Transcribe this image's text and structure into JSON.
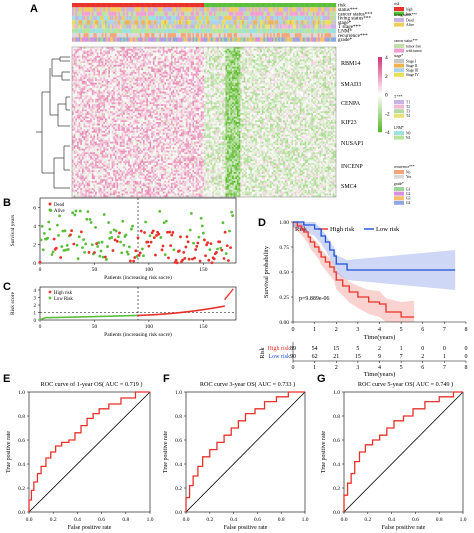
{
  "panels": {
    "A": "A",
    "B": "B",
    "C": "C",
    "D": "D",
    "E": "E",
    "F": "F",
    "G": "G"
  },
  "chart_data": [
    {
      "panel": "A",
      "type": "heatmap",
      "annotation_rows": [
        "risk",
        "status***",
        "cancer status***",
        "living status***",
        "stage*",
        "T stage***",
        "LNM*",
        "recurrence***",
        "grade*"
      ],
      "genes": [
        "RBM14",
        "SMAD3",
        "CENPA",
        "KIF23",
        "NUSAP1",
        "INCENP",
        "SMC4"
      ],
      "color_scale": {
        "ticks": [
          4,
          2,
          0,
          -2,
          -4
        ],
        "high": "#d6357a",
        "mid": "#ffffff",
        "low": "#5cb82a"
      },
      "legend_groups": [
        {
          "title": "risk",
          "items": [
            {
              "label": "high",
              "color": "#e8322b"
            },
            {
              "label": "low",
              "color": "#5bbf3c"
            }
          ]
        },
        {
          "title": "living status***",
          "items": [
            {
              "label": "Dead",
              "color": "#c9b3e6"
            },
            {
              "label": "Alive",
              "color": "#f2cd5c"
            }
          ]
        },
        {
          "title": "cancer status***",
          "items": [
            {
              "label": "tumor free",
              "color": "#bfe0a8"
            },
            {
              "label": "with tumor",
              "color": "#f2a0d2"
            }
          ]
        },
        {
          "title": "stage*",
          "items": [
            {
              "label": "Stage I",
              "color": "#c7c7c7"
            },
            {
              "label": "Stage II",
              "color": "#f2b24c"
            },
            {
              "label": "Stage III",
              "color": "#a9d4ee"
            },
            {
              "label": "Stage IV",
              "color": "#eadf58"
            }
          ]
        },
        {
          "title": "T ***",
          "items": [
            {
              "label": "T1",
              "color": "#c9b3e6"
            },
            {
              "label": "T2",
              "color": "#f4b8d6"
            },
            {
              "label": "T3",
              "color": "#b3d9a6"
            },
            {
              "label": "T4",
              "color": "#e8e37a"
            }
          ]
        },
        {
          "title": "LNM*",
          "items": [
            {
              "label": "N0",
              "color": "#9fe0e0"
            },
            {
              "label": "N1",
              "color": "#b7e59a"
            }
          ]
        },
        {
          "title": "recurrence***",
          "items": [
            {
              "label": "No",
              "color": "#f3a67a"
            },
            {
              "label": "Yes",
              "color": "#d9d9d9"
            }
          ]
        },
        {
          "title": "grade*",
          "items": [
            {
              "label": "G1",
              "color": "#9ed49a"
            },
            {
              "label": "G2",
              "color": "#d88fe0"
            },
            {
              "label": "G3",
              "color": "#f4c06a"
            },
            {
              "label": "G4",
              "color": "#8fa6e6"
            }
          ]
        }
      ]
    },
    {
      "panel": "B",
      "type": "scatter",
      "xlabel": "Patients (increasing risk socre)",
      "ylabel": "Survival years",
      "xticks": [
        0,
        50,
        100,
        150
      ],
      "yticks": [
        0,
        2,
        4,
        6
      ],
      "xlim": [
        0,
        180
      ],
      "ylim": [
        0,
        7
      ],
      "legend": [
        {
          "label": "Dead",
          "color": "#e8322b"
        },
        {
          "label": "Alive",
          "color": "#5bbf3c"
        }
      ],
      "cutoff_x": 90
    },
    {
      "panel": "C",
      "type": "scatter",
      "xlabel": "Patients (increasing risk socre)",
      "ylabel": "Risk score",
      "xticks": [
        0,
        50,
        100,
        150
      ],
      "yticks": [
        0,
        1,
        2,
        3,
        4
      ],
      "xlim": [
        0,
        180
      ],
      "ylim": [
        0,
        4.4
      ],
      "legend": [
        {
          "label": "High risk",
          "color": "#e8322b"
        },
        {
          "label": "Low Risk",
          "color": "#5bbf3c"
        }
      ],
      "cutoff_x": 90,
      "cutoff_y": 1.0
    },
    {
      "panel": "D",
      "type": "line",
      "xlabel": "Time(years)",
      "ylabel": "Survival probability",
      "legend_title": "Risk",
      "xticks": [
        0,
        1,
        2,
        3,
        4,
        5,
        6,
        7,
        8
      ],
      "yticks": [
        0.0,
        0.25,
        0.5,
        0.75,
        1.0
      ],
      "ytick_labels": [
        "0.00",
        "0.25",
        "0.50",
        "0.75",
        "1.00"
      ],
      "xlim": [
        0,
        8
      ],
      "ylim": [
        0,
        1
      ],
      "annotation": "p=9.889e-06",
      "series": [
        {
          "name": "High risk",
          "color": "#e8322b",
          "x": [
            0,
            0.2,
            0.4,
            0.5,
            0.7,
            0.8,
            1.0,
            1.2,
            1.3,
            1.5,
            1.7,
            1.9,
            2.0,
            2.3,
            2.6,
            3.0,
            3.5,
            4.0,
            4.3,
            5.0,
            5.6
          ],
          "y": [
            1.0,
            0.96,
            0.93,
            0.9,
            0.85,
            0.8,
            0.75,
            0.7,
            0.65,
            0.6,
            0.55,
            0.5,
            0.42,
            0.36,
            0.3,
            0.25,
            0.2,
            0.18,
            0.1,
            0.05,
            0.05
          ]
        },
        {
          "name": "Low risk",
          "color": "#1f4fd6",
          "x": [
            0,
            0.5,
            1.0,
            1.3,
            1.5,
            1.7,
            1.9,
            2.0,
            2.5,
            3.0,
            4.0,
            5.0,
            7.5
          ],
          "y": [
            1.0,
            0.97,
            0.93,
            0.86,
            0.8,
            0.72,
            0.66,
            0.58,
            0.52,
            0.52,
            0.52,
            0.52,
            0.52
          ]
        }
      ],
      "risk_table": {
        "label": "Risk",
        "times": [
          0,
          1,
          2,
          3,
          4,
          5,
          6,
          7,
          8
        ],
        "rows": [
          {
            "name": "High risk",
            "counts": [
              89,
              54,
              15,
              5,
              2,
              1,
              0,
              0,
              0
            ]
          },
          {
            "name": "Low risk",
            "counts": [
              90,
              62,
              21,
              15,
              9,
              7,
              2,
              1,
              0
            ]
          }
        ]
      }
    },
    {
      "panel": "E",
      "type": "line",
      "title": "ROC curve of 1-year OS( AUC = 0.719 )",
      "xlabel": "False positive rate",
      "ylabel": "True positive rate",
      "xticks": [
        0.0,
        0.2,
        0.4,
        0.6,
        0.8,
        1.0
      ],
      "yticks": [
        0.0,
        0.2,
        0.4,
        0.6,
        0.8,
        1.0
      ],
      "xlim": [
        0,
        1
      ],
      "ylim": [
        0,
        1
      ],
      "series": [
        {
          "color": "#e8322b",
          "x": [
            0,
            0,
            0.02,
            0.02,
            0.04,
            0.04,
            0.07,
            0.07,
            0.1,
            0.1,
            0.14,
            0.14,
            0.18,
            0.18,
            0.22,
            0.22,
            0.27,
            0.27,
            0.33,
            0.33,
            0.38,
            0.38,
            0.43,
            0.43,
            0.48,
            0.48,
            0.53,
            0.53,
            0.58,
            0.58,
            0.66,
            0.66,
            0.76,
            0.76,
            0.88,
            0.88,
            1.0
          ],
          "y": [
            0,
            0.1,
            0.1,
            0.18,
            0.18,
            0.25,
            0.25,
            0.32,
            0.32,
            0.38,
            0.38,
            0.45,
            0.45,
            0.5,
            0.5,
            0.55,
            0.55,
            0.58,
            0.58,
            0.6,
            0.6,
            0.66,
            0.66,
            0.72,
            0.72,
            0.78,
            0.78,
            0.82,
            0.82,
            0.86,
            0.86,
            0.9,
            0.9,
            0.95,
            0.95,
            1.0,
            1.0
          ]
        }
      ]
    },
    {
      "panel": "F",
      "type": "line",
      "title": "ROC curve 3-year OS( AUC = 0.733 )",
      "xlabel": "False positive rate",
      "ylabel": "True positive rate",
      "xticks": [
        0.0,
        0.2,
        0.4,
        0.6,
        0.8,
        1.0
      ],
      "yticks": [
        0.0,
        0.2,
        0.4,
        0.6,
        0.8,
        1.0
      ],
      "xlim": [
        0,
        1
      ],
      "ylim": [
        0,
        1
      ],
      "series": [
        {
          "color": "#e8322b",
          "x": [
            0,
            0,
            0.03,
            0.03,
            0.06,
            0.06,
            0.1,
            0.1,
            0.14,
            0.14,
            0.2,
            0.2,
            0.26,
            0.26,
            0.32,
            0.32,
            0.38,
            0.38,
            0.44,
            0.44,
            0.5,
            0.5,
            0.58,
            0.58,
            0.66,
            0.66,
            0.76,
            0.76,
            0.86,
            0.86,
            1.0
          ],
          "y": [
            0,
            0.12,
            0.12,
            0.22,
            0.22,
            0.3,
            0.3,
            0.38,
            0.38,
            0.46,
            0.46,
            0.52,
            0.52,
            0.58,
            0.58,
            0.64,
            0.64,
            0.7,
            0.7,
            0.76,
            0.76,
            0.82,
            0.82,
            0.86,
            0.86,
            0.92,
            0.92,
            0.96,
            0.96,
            1.0,
            1.0
          ]
        }
      ]
    },
    {
      "panel": "G",
      "type": "line",
      "title": "ROC curve 5-year OS( AUC = 0.749 )",
      "xlabel": "False positive rate",
      "ylabel": "True positive rate",
      "xticks": [
        0.0,
        0.2,
        0.4,
        0.6,
        0.8,
        1.0
      ],
      "yticks": [
        0.0,
        0.2,
        0.4,
        0.6,
        0.8,
        1.0
      ],
      "xlim": [
        0,
        1
      ],
      "ylim": [
        0,
        1
      ],
      "series": [
        {
          "color": "#e8322b",
          "x": [
            0,
            0,
            0.03,
            0.03,
            0.06,
            0.06,
            0.09,
            0.09,
            0.13,
            0.13,
            0.18,
            0.18,
            0.24,
            0.24,
            0.3,
            0.3,
            0.36,
            0.36,
            0.42,
            0.42,
            0.5,
            0.5,
            0.58,
            0.58,
            0.68,
            0.68,
            0.8,
            0.8,
            0.92,
            0.92,
            1.0
          ],
          "y": [
            0,
            0.14,
            0.14,
            0.24,
            0.24,
            0.32,
            0.32,
            0.42,
            0.42,
            0.5,
            0.5,
            0.56,
            0.56,
            0.6,
            0.6,
            0.64,
            0.64,
            0.7,
            0.7,
            0.76,
            0.76,
            0.8,
            0.8,
            0.86,
            0.86,
            0.92,
            0.92,
            0.96,
            0.96,
            1.0,
            1.0
          ]
        }
      ]
    }
  ]
}
